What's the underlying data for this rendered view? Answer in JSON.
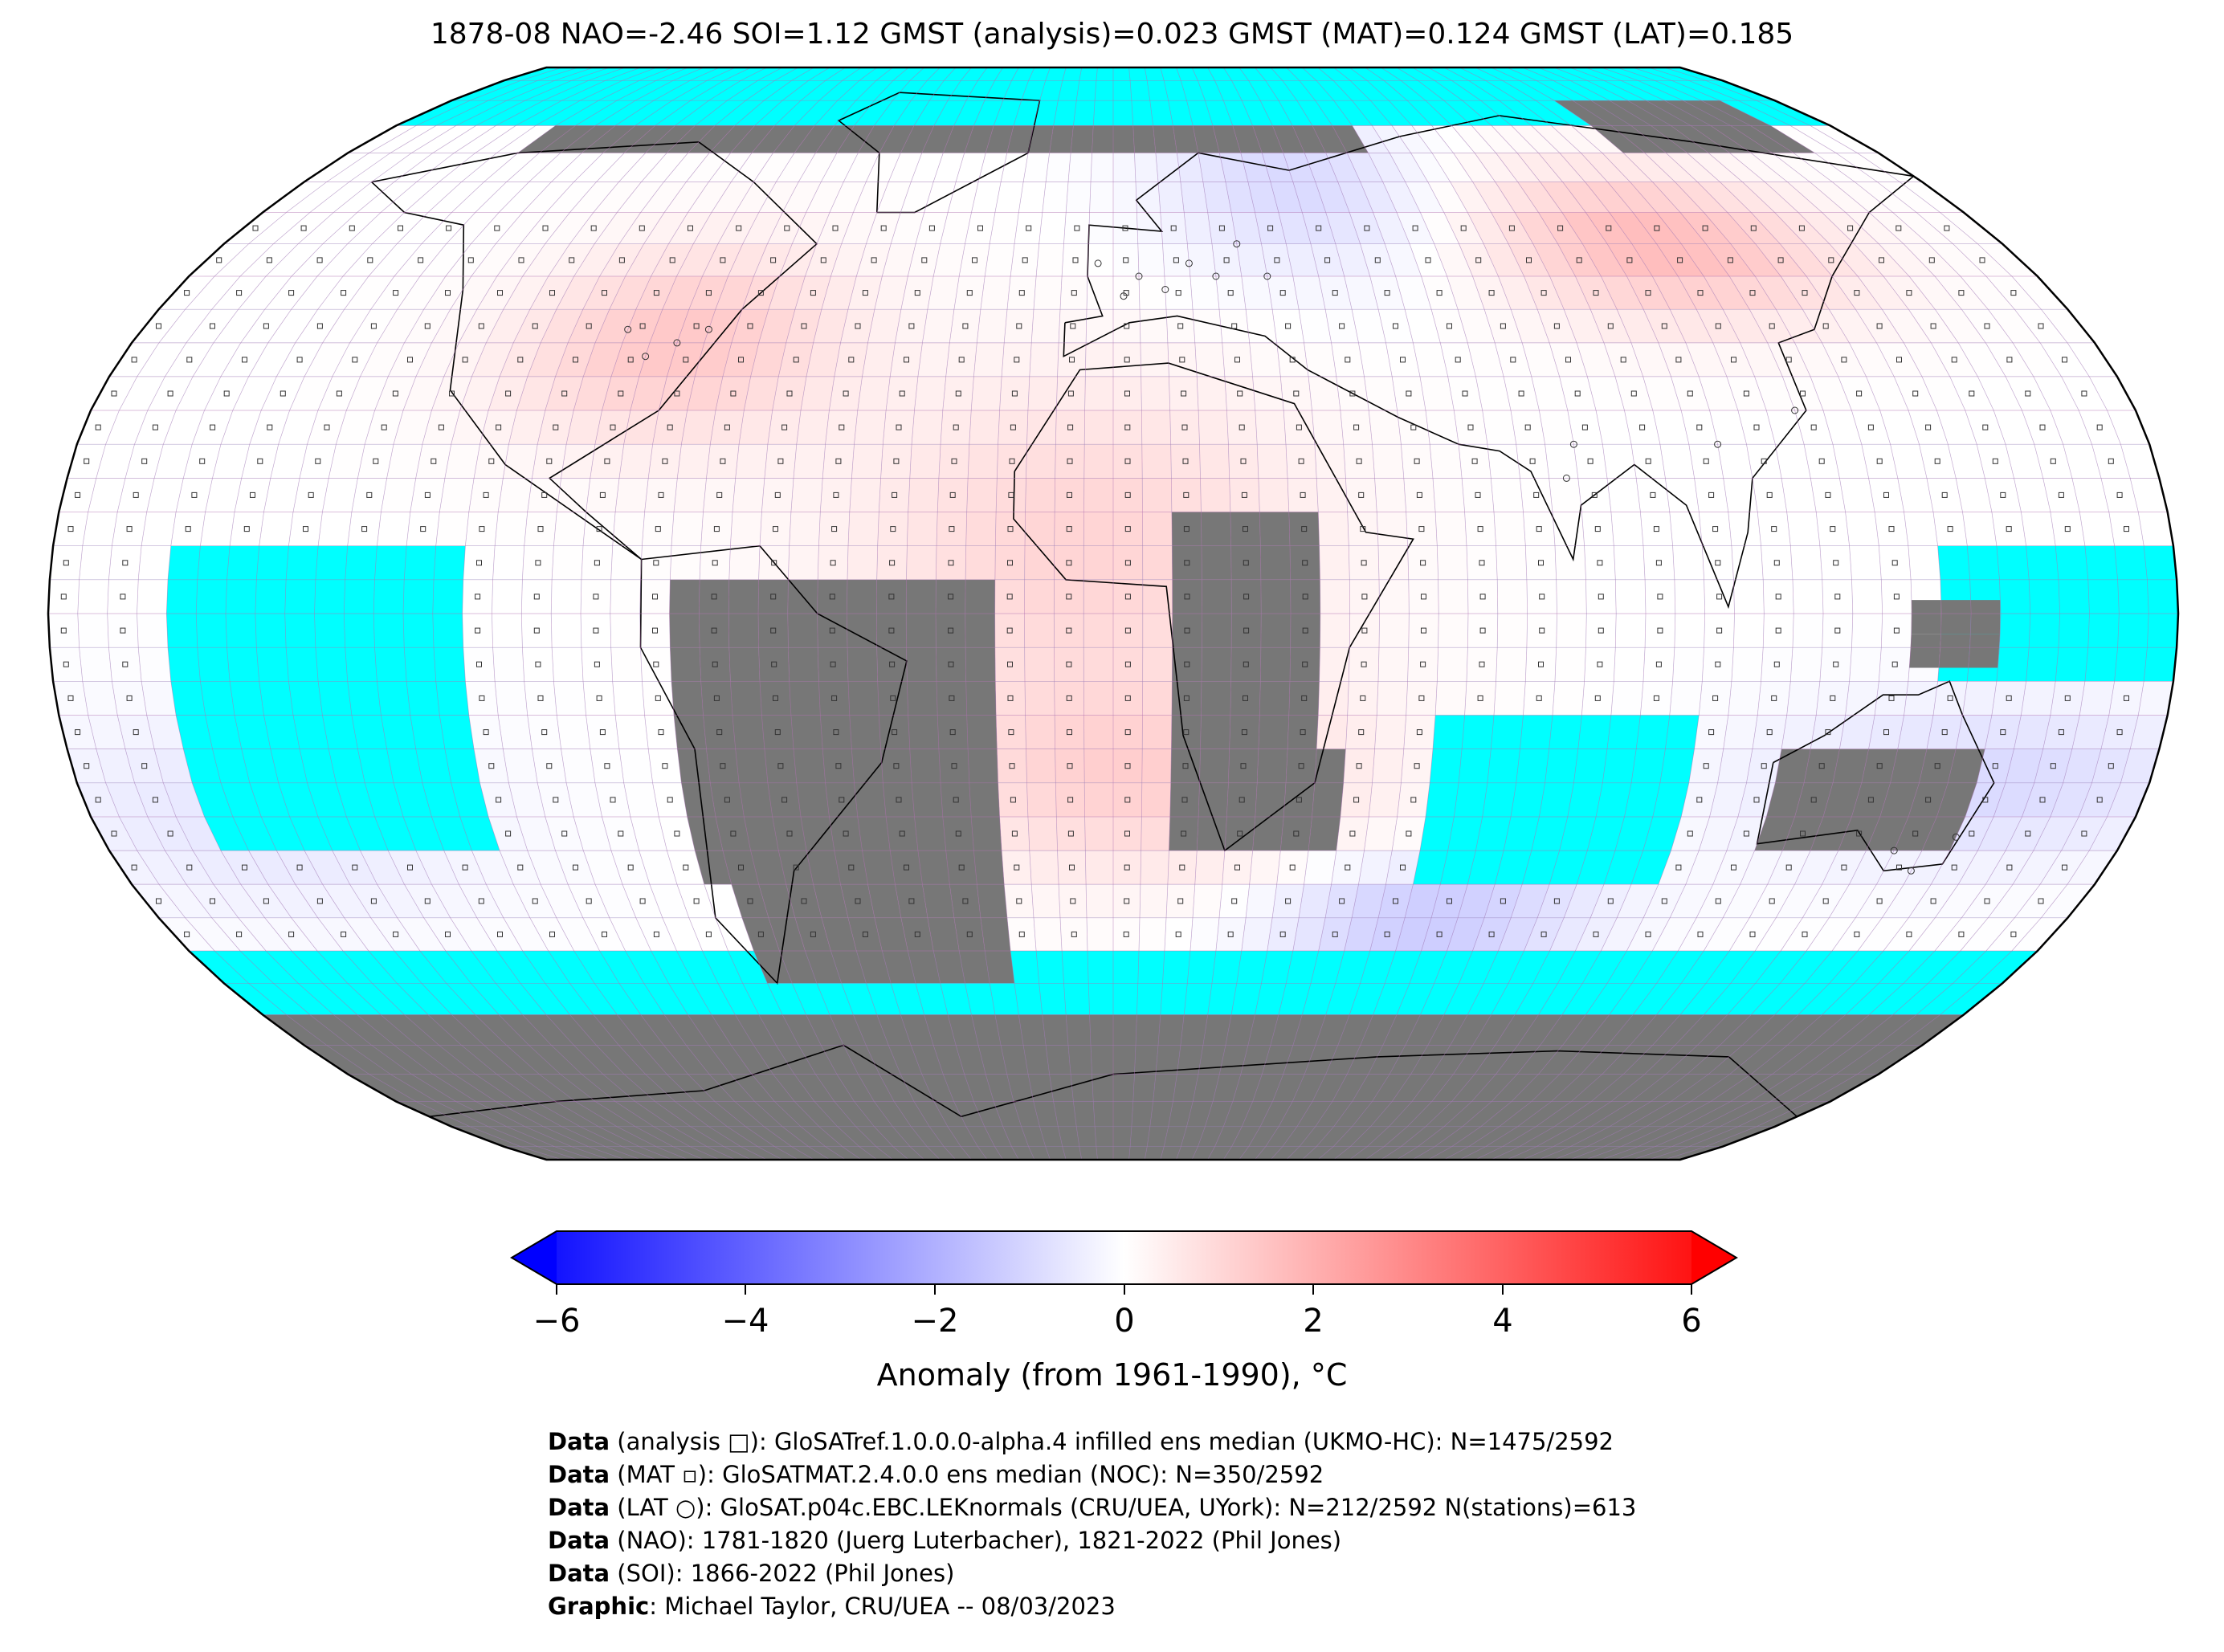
{
  "title": "1878-08 NAO=-2.46 SOI=1.12 GMST (analysis)=0.023 GMST (MAT)=0.124 GMST (LAT)=0.185",
  "map": {
    "projection": "Robinson",
    "colors": {
      "missing_ocean": "#00ffff",
      "missing_land": "#777777",
      "coastline": "#000000",
      "grid": "#b070b0",
      "ocean_background": "#00ffff"
    },
    "markers": {
      "analysis": "square",
      "mat": "small-square",
      "lat": "circle"
    }
  },
  "colorbar": {
    "ticks": [
      "−6",
      "−4",
      "−2",
      "0",
      "2",
      "4",
      "6"
    ],
    "min": -6,
    "max": 6,
    "colors": {
      "low": "#0000ff",
      "mid": "#ffffff",
      "high": "#ff0000"
    },
    "label": "Anomaly (from 1961-1990), °C",
    "extend": "both"
  },
  "credits": [
    {
      "key": "Data",
      "text": " (analysis □): GloSATref.1.0.0.0-alpha.4 infilled ens median (UKMO-HC): N=1475/2592"
    },
    {
      "key": "Data",
      "text": " (MAT ▫): GloSATMAT.2.4.0.0 ens median (NOC): N=350/2592"
    },
    {
      "key": "Data",
      "text": " (LAT ○): GloSAT.p04c.EBC.LEKnormals (CRU/UEA, UYork): N=212/2592 N(stations)=613"
    },
    {
      "key": "Data",
      "text": " (NAO): 1781-1820 (Juerg Luterbacher), 1821-2022 (Phil Jones)"
    },
    {
      "key": "Data",
      "text": " (SOI): 1866-2022 (Phil Jones)"
    },
    {
      "key": "Graphic",
      "text": ": Michael Taylor, CRU/UEA -- 08/03/2023"
    }
  ]
}
